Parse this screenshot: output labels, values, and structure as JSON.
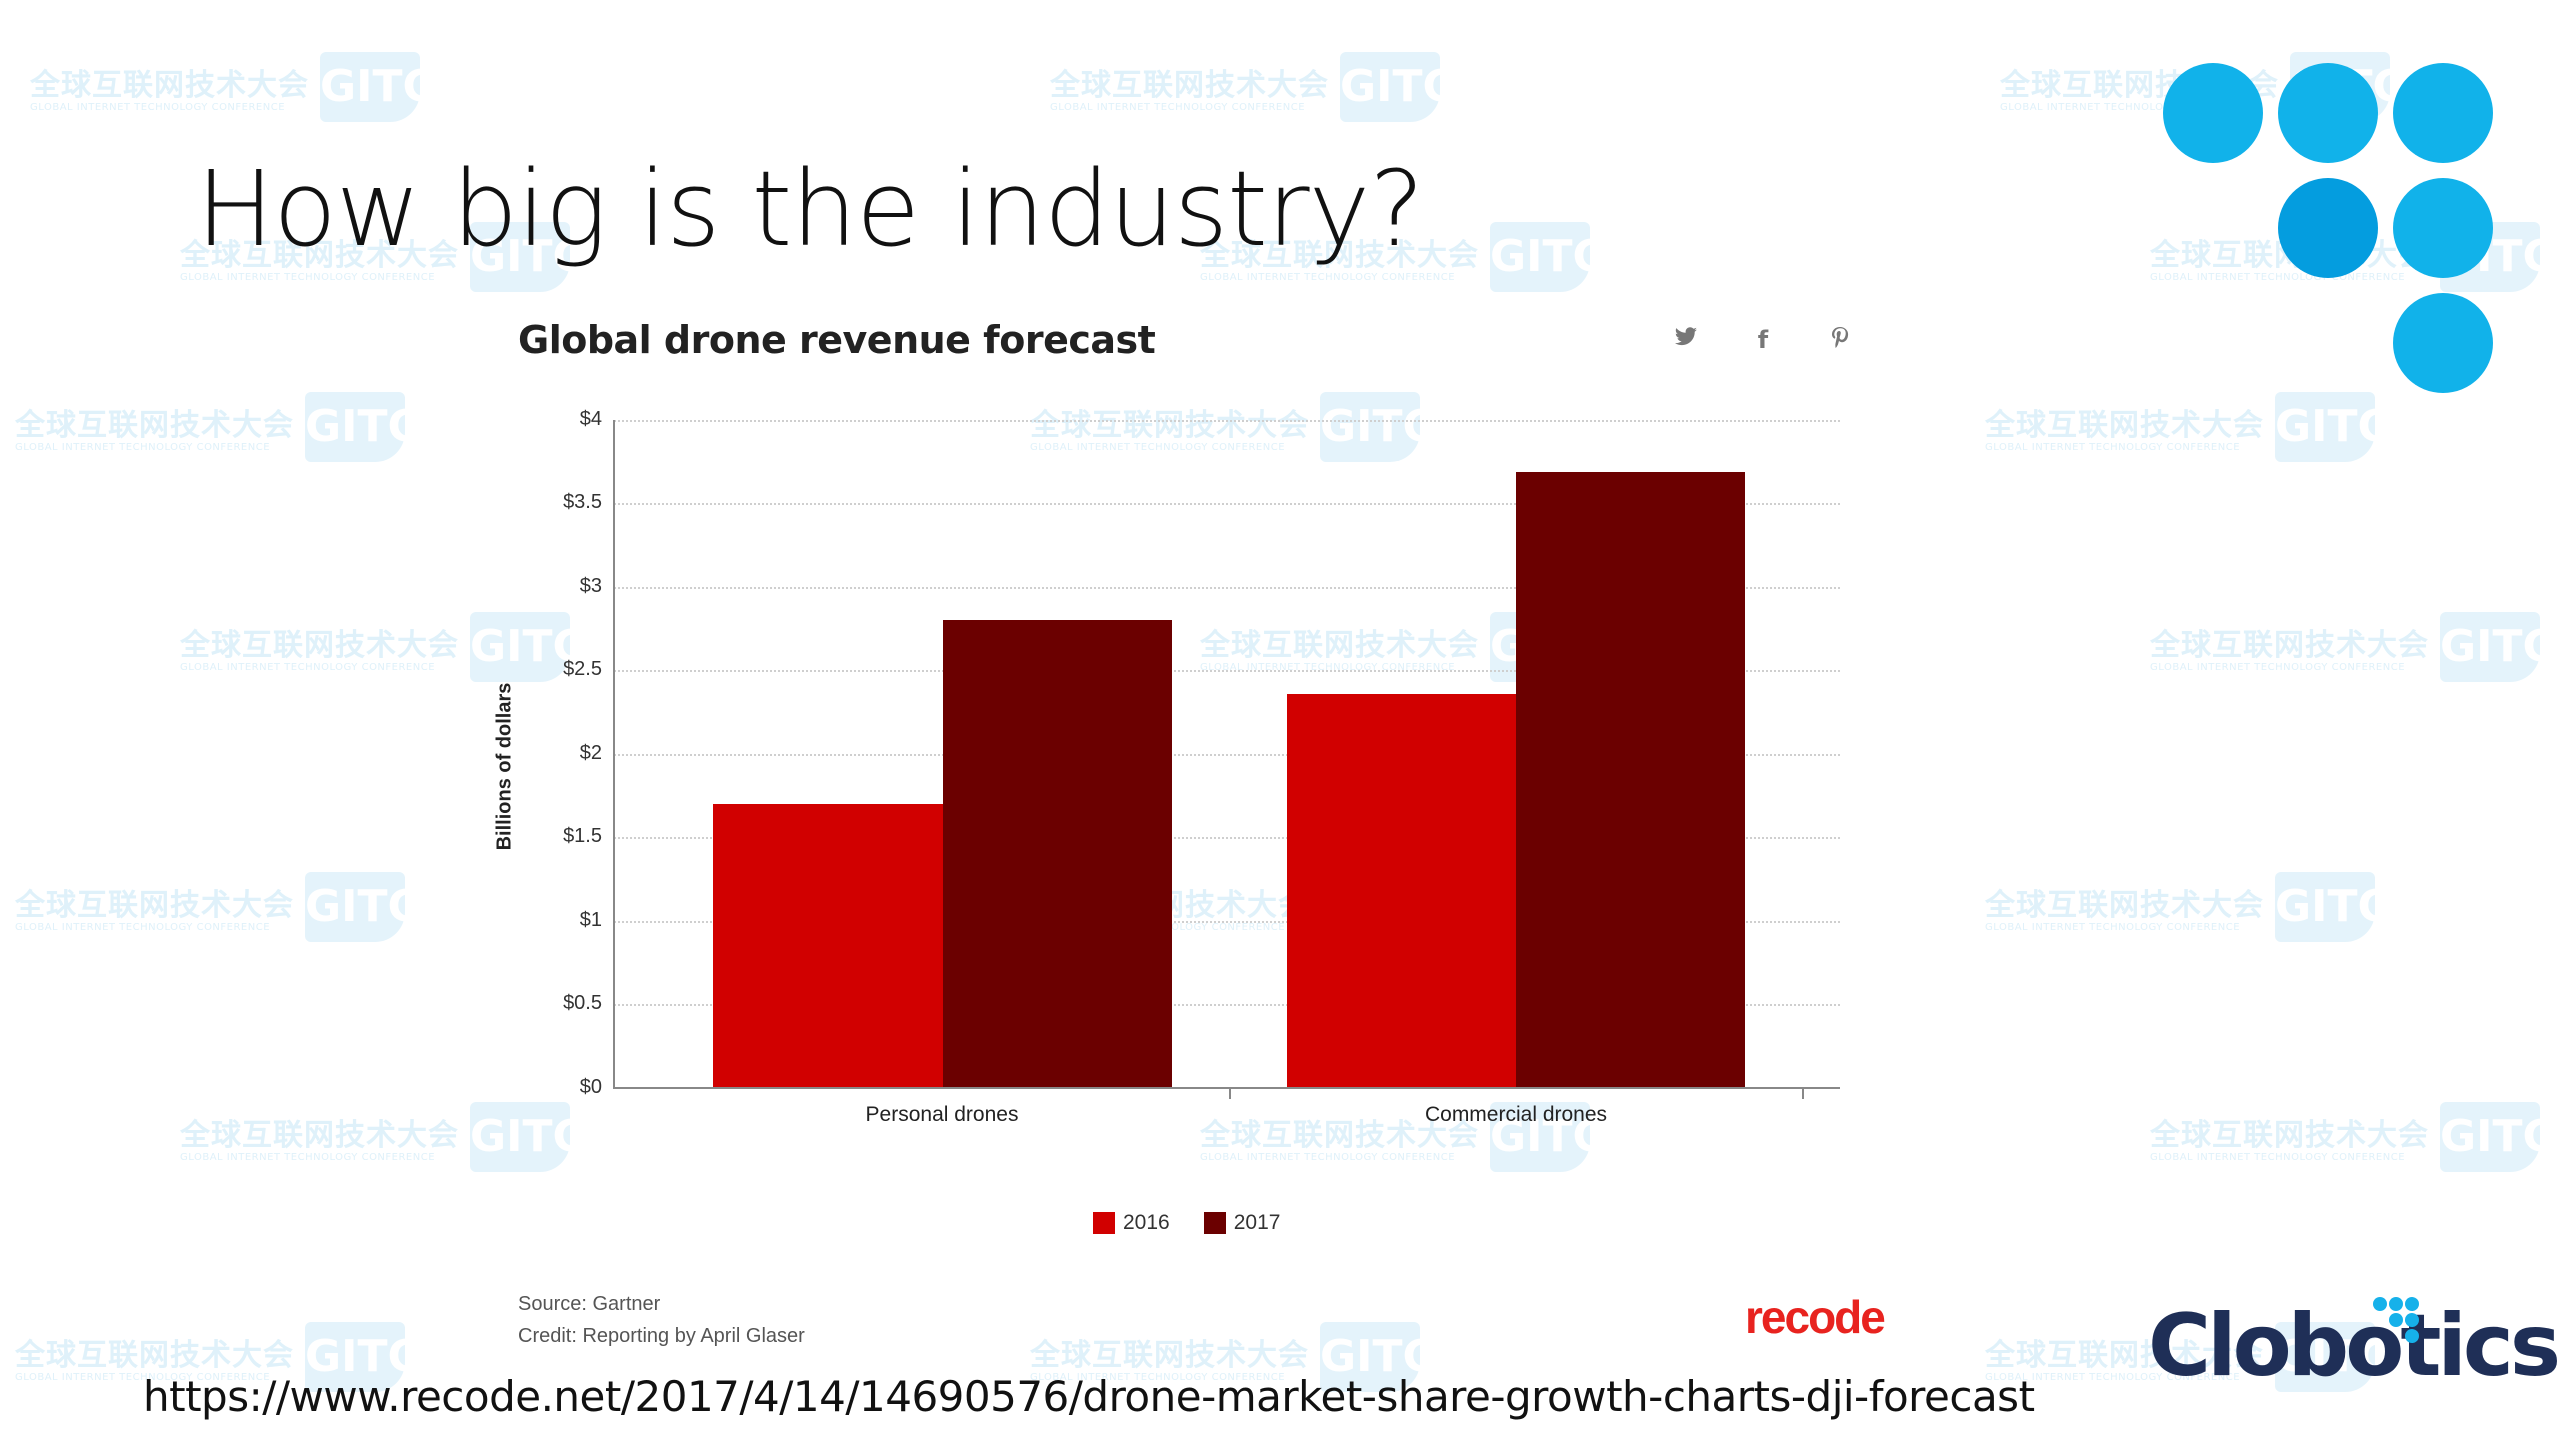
{
  "slide": {
    "title": "How big is the industry?",
    "source_url": "https://www.recode.net/2017/4/14/14690576/drone-market-share-growth-charts-dji-forecast",
    "company_logo": "Clobotics",
    "watermark": {
      "cn": "全球互联网技术大会",
      "en": "GLOBAL INTERNET TECHNOLOGY CONFERENCE",
      "logo": "GITC"
    }
  },
  "chart_header": {
    "title": "Global drone revenue forecast",
    "share_icons": [
      "twitter-icon",
      "facebook-icon",
      "pinterest-icon"
    ],
    "share_glyphs": [
      "🐦",
      "f",
      "℗"
    ]
  },
  "footer": {
    "source": "Source: Gartner",
    "credit": "Credit: Reporting by April Glaser",
    "publisher_logo": "recode"
  },
  "colors": {
    "series_2016": "#d10000",
    "series_2017": "#6b0000",
    "brand_blue": "#11b2ea",
    "brand_navy": "#1f2f57",
    "recode_red": "#e8231f"
  },
  "chart_data": {
    "type": "bar",
    "title": "Global drone revenue forecast",
    "xlabel": "",
    "ylabel": "Billions of dollars",
    "categories": [
      "Personal drones",
      "Commercial drones"
    ],
    "series": [
      {
        "name": "2016",
        "values": [
          1.7,
          2.36
        ],
        "color": "#d10000"
      },
      {
        "name": "2017",
        "values": [
          2.8,
          3.69
        ],
        "color": "#6b0000"
      }
    ],
    "ylim": [
      0,
      4
    ],
    "yticks": [
      "$0",
      "$0.5",
      "$1",
      "$1.5",
      "$2",
      "$2.5",
      "$3",
      "$3.5",
      "$4"
    ],
    "grid": true,
    "legend_position": "bottom",
    "source": "Gartner"
  }
}
